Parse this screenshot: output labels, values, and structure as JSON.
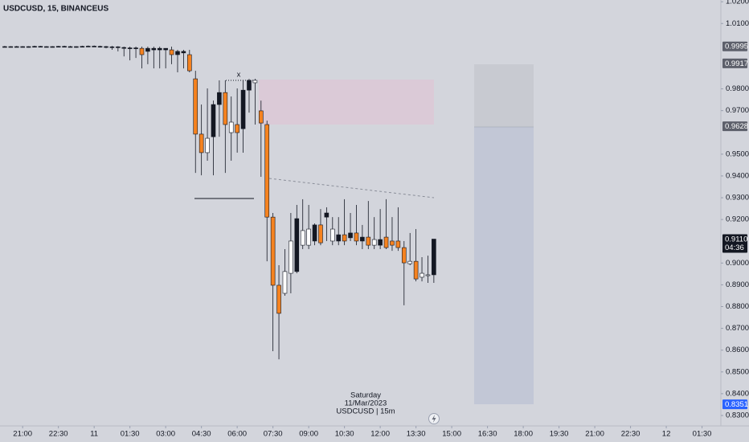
{
  "chart_data": {
    "type": "candlestick",
    "title": "USDCUSD, 15, BINANCEUS",
    "annotation": "x",
    "info": [
      "Saturday",
      "11/Mar/2023",
      "USDCUSD | 15m"
    ],
    "countdown": "04:36",
    "last_price": {
      "value": 0.911,
      "label": "0.9110"
    },
    "price_labels": [
      {
        "value": 0.9995,
        "color": "#5d606b"
      },
      {
        "value": 0.9917,
        "color": "#5d606b"
      },
      {
        "value": 0.9628,
        "color": "#5d606b"
      },
      {
        "value": 0.8351,
        "color": "#2962ff"
      }
    ],
    "grid": false,
    "ylim": [
      0.8252,
      1.0208
    ],
    "yticks": [
      {
        "value": 1.02,
        "label": "1.0200"
      },
      {
        "value": 1.01,
        "label": "1.0100"
      },
      {
        "value": 0.98,
        "label": "0.9800"
      },
      {
        "value": 0.97,
        "label": "0.9700"
      },
      {
        "value": 0.95,
        "label": "0.9500"
      },
      {
        "value": 0.94,
        "label": "0.9400"
      },
      {
        "value": 0.93,
        "label": "0.9300"
      },
      {
        "value": 0.92,
        "label": "0.9200"
      },
      {
        "value": 0.9,
        "label": "0.9000"
      },
      {
        "value": 0.89,
        "label": "0.8900"
      },
      {
        "value": 0.88,
        "label": "0.8800"
      },
      {
        "value": 0.87,
        "label": "0.8700"
      },
      {
        "value": 0.86,
        "label": "0.8600"
      },
      {
        "value": 0.85,
        "label": "0.8500"
      },
      {
        "value": 0.84,
        "label": "0.8400"
      },
      {
        "value": 0.83,
        "label": "0.8300"
      }
    ],
    "xlim": [
      20.05,
      50.29
    ],
    "xticks": [
      {
        "value": 21,
        "label": "21:00"
      },
      {
        "value": 22.5,
        "label": "22:30"
      },
      {
        "value": 24,
        "label": "11"
      },
      {
        "value": 25.5,
        "label": "01:30"
      },
      {
        "value": 27,
        "label": "03:00"
      },
      {
        "value": 28.5,
        "label": "04:30"
      },
      {
        "value": 30,
        "label": "06:00"
      },
      {
        "value": 31.5,
        "label": "07:30"
      },
      {
        "value": 33,
        "label": "09:00"
      },
      {
        "value": 34.5,
        "label": "10:30"
      },
      {
        "value": 36,
        "label": "12:00"
      },
      {
        "value": 37.5,
        "label": "13:30"
      },
      {
        "value": 39,
        "label": "15:00"
      },
      {
        "value": 40.5,
        "label": "16:30"
      },
      {
        "value": 42,
        "label": "18:00"
      },
      {
        "value": 43.5,
        "label": "19:30"
      },
      {
        "value": 45,
        "label": "21:00"
      },
      {
        "value": 46.5,
        "label": "22:30"
      },
      {
        "value": 48,
        "label": "12"
      },
      {
        "value": 49.5,
        "label": "01:30"
      }
    ],
    "x": [
      20.25,
      20.5,
      20.75,
      21,
      21.25,
      21.5,
      21.75,
      22,
      22.25,
      22.5,
      22.75,
      23,
      23.25,
      23.5,
      23.75,
      24,
      24.25,
      24.5,
      24.75,
      25,
      25.25,
      25.5,
      25.75,
      26,
      26.25,
      26.5,
      26.75,
      27,
      27.25,
      27.5,
      27.75,
      28,
      28.25,
      28.5,
      28.75,
      29,
      29.25,
      29.5,
      29.75,
      30,
      30.25,
      30.5,
      30.75,
      31,
      31.25,
      31.5,
      31.75,
      32,
      32.25,
      32.5,
      32.75,
      33,
      33.25,
      33.5,
      33.75,
      34,
      34.25,
      34.5,
      34.75,
      35,
      35.25,
      35.5,
      35.75,
      36,
      36.25,
      36.5,
      36.75,
      37,
      37.25,
      37.5,
      37.75,
      38,
      38.25
    ],
    "open": [
      0.9994,
      0.9993,
      0.9994,
      0.9994,
      0.9993,
      0.9994,
      0.9995,
      0.9994,
      0.9993,
      0.9994,
      0.9995,
      0.9994,
      0.9993,
      0.9994,
      0.9995,
      0.9996,
      0.9995,
      0.9994,
      0.9993,
      0.9993,
      0.999,
      0.9986,
      0.9988,
      0.9986,
      0.9972,
      0.9986,
      0.9979,
      0.9986,
      0.9979,
      0.9957,
      0.9972,
      0.9957,
      0.9846,
      0.9592,
      0.9507,
      0.958,
      0.9728,
      0.9783,
      0.9599,
      0.9636,
      0.9617,
      0.9794,
      0.9828,
      0.9699,
      0.9636,
      0.9211,
      0.8898,
      0.8861,
      0.8953,
      0.8961,
      0.9082,
      0.9082,
      0.9101,
      0.9175,
      0.9211,
      0.9101,
      0.9101,
      0.913,
      0.9116,
      0.9138,
      0.9101,
      0.9119,
      0.9082,
      0.9082,
      0.9119,
      0.9101,
      0.9101,
      0.9071,
      0.8997,
      0.9008,
      0.8935,
      0.8942,
      0.8946
    ],
    "high": [
      0.9997,
      0.9996,
      0.9997,
      0.9996,
      0.9996,
      0.9998,
      0.9997,
      0.9996,
      0.9996,
      0.9997,
      0.9998,
      0.9997,
      0.9996,
      0.9998,
      0.9999,
      0.9999,
      0.9998,
      0.9997,
      0.9997,
      0.9996,
      0.9994,
      0.9994,
      0.9994,
      0.9994,
      0.9994,
      0.9994,
      0.9994,
      0.9986,
      0.9994,
      0.9979,
      0.9979,
      0.9979,
      0.9883,
      0.9728,
      0.9802,
      0.9746,
      0.9839,
      0.9839,
      0.9765,
      0.9802,
      0.9839,
      0.9846,
      0.9846,
      0.9746,
      0.9654,
      0.923,
      0.899,
      0.9064,
      0.923,
      0.9267,
      0.9293,
      0.9267,
      0.9182,
      0.9248,
      0.9256,
      0.9211,
      0.9211,
      0.9293,
      0.923,
      0.9267,
      0.9175,
      0.9285,
      0.9211,
      0.9248,
      0.9293,
      0.9211,
      0.9256,
      0.9101,
      0.9138,
      0.9156,
      0.9027,
      0.9034,
      0.911
    ],
    "low": [
      0.9991,
      0.999,
      0.9992,
      0.9991,
      0.999,
      0.9992,
      0.9992,
      0.9991,
      0.999,
      0.9991,
      0.9992,
      0.999,
      0.9989,
      0.9991,
      0.9992,
      0.9993,
      0.999,
      0.9986,
      0.9979,
      0.9972,
      0.9949,
      0.9931,
      0.9942,
      0.9894,
      0.9913,
      0.9894,
      0.9894,
      0.9894,
      0.9913,
      0.9876,
      0.9894,
      0.9876,
      0.9414,
      0.9403,
      0.947,
      0.9403,
      0.958,
      0.9414,
      0.947,
      0.9507,
      0.9507,
      0.9691,
      0.9636,
      0.9396,
      0.9008,
      0.8595,
      0.8558,
      0.885,
      0.8861,
      0.8953,
      0.9064,
      0.9064,
      0.9082,
      0.9082,
      0.9101,
      0.9082,
      0.9082,
      0.9082,
      0.9101,
      0.9082,
      0.9064,
      0.9064,
      0.9064,
      0.9064,
      0.9064,
      0.9056,
      0.9056,
      0.8806,
      0.899,
      0.8916,
      0.8916,
      0.8909,
      0.8909
    ],
    "close": [
      0.9993,
      0.9994,
      0.9994,
      0.9993,
      0.9994,
      0.9995,
      0.9994,
      0.9993,
      0.9994,
      0.9995,
      0.9994,
      0.9993,
      0.9994,
      0.9995,
      0.9996,
      0.9995,
      0.9994,
      0.9993,
      0.9992,
      0.999,
      0.9986,
      0.9988,
      0.9986,
      0.9957,
      0.9986,
      0.9979,
      0.9986,
      0.9979,
      0.9957,
      0.9972,
      0.9965,
      0.9883,
      0.9592,
      0.9507,
      0.9573,
      0.9728,
      0.9783,
      0.9636,
      0.9647,
      0.9599,
      0.9794,
      0.9839,
      0.9839,
      0.9643,
      0.9211,
      0.8898,
      0.8769,
      0.8961,
      0.9101,
      0.9204,
      0.9149,
      0.9156,
      0.9175,
      0.9093,
      0.923,
      0.9156,
      0.913,
      0.9101,
      0.9138,
      0.9101,
      0.9119,
      0.9082,
      0.9108,
      0.9108,
      0.9071,
      0.9082,
      0.9071,
      0.9001,
      0.9008,
      0.8927,
      0.8953,
      0.8946,
      0.911
    ],
    "colors": [
      "#131722",
      "#131722",
      "#131722",
      "#131722",
      "#131722",
      "#131722",
      "#131722",
      "#131722",
      "#131722",
      "#131722",
      "#131722",
      "#131722",
      "#131722",
      "#131722",
      "#131722",
      "#131722",
      "#131722",
      "#131722",
      "#131722",
      "#131722",
      "#131722",
      "#131722",
      "#131722",
      "#f5821f",
      "#131722",
      "#131722",
      "#131722",
      "#131722",
      "#f5821f",
      "#131722",
      "#131722",
      "#f5821f",
      "#f5821f",
      "#f5821f",
      "#ffffff",
      "#131722",
      "#131722",
      "#f5821f",
      "#ffffff",
      "#f5821f",
      "#131722",
      "#131722",
      "#ffffff",
      "#f5821f",
      "#f5821f",
      "#f5821f",
      "#f5821f",
      "#ffffff",
      "#ffffff",
      "#131722",
      "#ffffff",
      "#ffffff",
      "#131722",
      "#f5821f",
      "#131722",
      "#ffffff",
      "#131722",
      "#f5821f",
      "#131722",
      "#f5821f",
      "#131722",
      "#f5821f",
      "#ffffff",
      "#131722",
      "#f5821f",
      "#f5821f",
      "#f5821f",
      "#f5821f",
      "#ffffff",
      "#f5821f",
      "#ffffff",
      "#ffffff",
      "#131722"
    ]
  }
}
